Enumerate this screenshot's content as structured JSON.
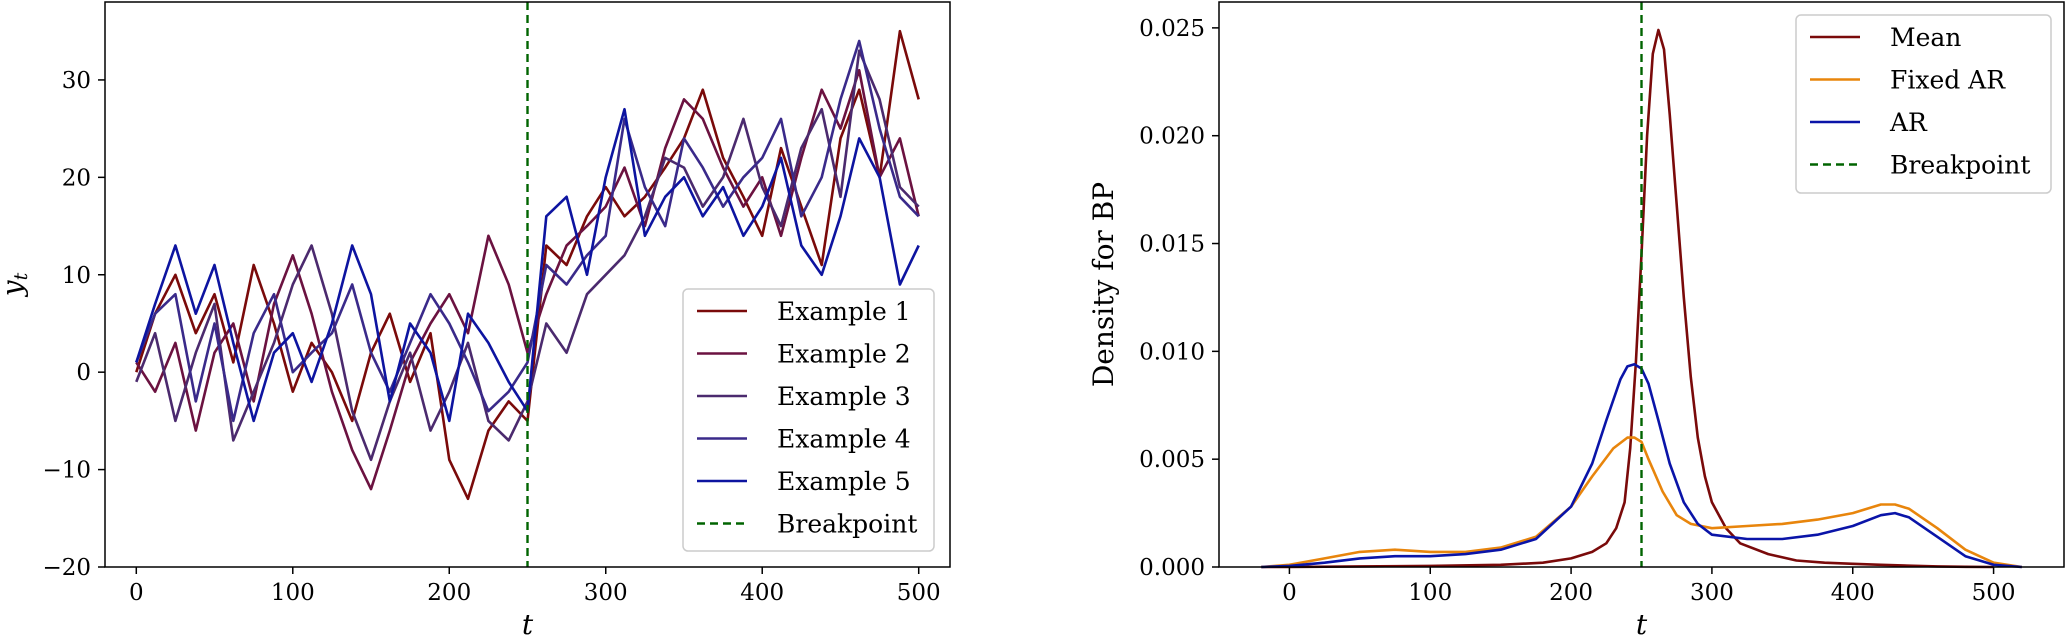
{
  "chart_data": [
    {
      "type": "line",
      "title": "",
      "xlabel": "t",
      "ylabel": "y",
      "ylabel_subscript": "t",
      "xlim": [
        -20,
        520
      ],
      "ylim": [
        -20,
        38
      ],
      "xticks": [
        0,
        100,
        200,
        300,
        400,
        500
      ],
      "yticks": [
        -20,
        -10,
        0,
        10,
        20,
        30
      ],
      "xtick_labels": [
        "0",
        "100",
        "200",
        "300",
        "400",
        "500"
      ],
      "ytick_labels": [
        "−20",
        "−10",
        "0",
        "10",
        "20",
        "30"
      ],
      "legend_position": "lower-right",
      "breakpoint": {
        "name": "Breakpoint",
        "x": 250,
        "color": "#006400",
        "style": "dashed"
      },
      "series": [
        {
          "name": "Example 1",
          "color": "#7a0a0a",
          "x": [
            0,
            12,
            25,
            38,
            50,
            62,
            75,
            88,
            100,
            112,
            125,
            138,
            150,
            162,
            175,
            188,
            200,
            212,
            225,
            238,
            250,
            262,
            275,
            288,
            300,
            312,
            325,
            338,
            350,
            362,
            375,
            388,
            400,
            412,
            425,
            438,
            450,
            462,
            475,
            488,
            500
          ],
          "y": [
            0,
            6,
            10,
            4,
            8,
            1,
            11,
            5,
            -2,
            3,
            0,
            -5,
            2,
            6,
            -1,
            4,
            -9,
            -13,
            -6,
            -3,
            -5,
            13,
            11,
            16,
            19,
            16,
            18,
            21,
            24,
            29,
            22,
            18,
            14,
            23,
            17,
            11,
            24,
            29,
            20,
            35,
            28
          ]
        },
        {
          "name": "Example 2",
          "color": "#6b1240",
          "x": [
            0,
            12,
            25,
            38,
            50,
            62,
            75,
            88,
            100,
            112,
            125,
            138,
            150,
            162,
            175,
            188,
            200,
            212,
            225,
            238,
            250,
            262,
            275,
            288,
            300,
            312,
            325,
            338,
            350,
            362,
            375,
            388,
            400,
            412,
            425,
            438,
            450,
            462,
            475,
            488,
            500
          ],
          "y": [
            1,
            -2,
            3,
            -6,
            2,
            5,
            -3,
            7,
            12,
            6,
            -2,
            -8,
            -12,
            -6,
            1,
            5,
            8,
            4,
            14,
            9,
            2,
            8,
            13,
            15,
            17,
            21,
            15,
            23,
            28,
            26,
            21,
            17,
            20,
            14,
            22,
            29,
            25,
            31,
            20,
            24,
            16
          ]
        },
        {
          "name": "Example 3",
          "color": "#4b2a6e",
          "x": [
            0,
            12,
            25,
            38,
            50,
            62,
            75,
            88,
            100,
            112,
            125,
            138,
            150,
            162,
            175,
            188,
            200,
            212,
            225,
            238,
            250,
            262,
            275,
            288,
            300,
            312,
            325,
            338,
            350,
            362,
            375,
            388,
            400,
            412,
            425,
            438,
            450,
            462,
            475,
            488,
            500
          ],
          "y": [
            -1,
            4,
            -5,
            2,
            7,
            -7,
            -2,
            3,
            9,
            13,
            6,
            -4,
            -9,
            -3,
            2,
            -6,
            -2,
            3,
            -5,
            -7,
            -3,
            5,
            2,
            8,
            10,
            12,
            16,
            22,
            21,
            17,
            20,
            26,
            19,
            15,
            23,
            27,
            18,
            33,
            28,
            19,
            17
          ]
        },
        {
          "name": "Example 4",
          "color": "#3a2a8a",
          "x": [
            0,
            12,
            25,
            38,
            50,
            62,
            75,
            88,
            100,
            112,
            125,
            138,
            150,
            162,
            175,
            188,
            200,
            212,
            225,
            238,
            250,
            262,
            275,
            288,
            300,
            312,
            325,
            338,
            350,
            362,
            375,
            388,
            400,
            412,
            425,
            438,
            450,
            462,
            475,
            488,
            500
          ],
          "y": [
            1,
            6,
            8,
            -3,
            5,
            -5,
            4,
            8,
            0,
            2,
            4,
            9,
            2,
            -2,
            3,
            8,
            5,
            1,
            -4,
            -2,
            1,
            11,
            9,
            12,
            14,
            26,
            19,
            15,
            24,
            21,
            17,
            20,
            22,
            26,
            16,
            20,
            28,
            34,
            25,
            18,
            16
          ]
        },
        {
          "name": "Example 5",
          "color": "#0d14a0",
          "x": [
            0,
            12,
            25,
            38,
            50,
            62,
            75,
            88,
            100,
            112,
            125,
            138,
            150,
            162,
            175,
            188,
            200,
            212,
            225,
            238,
            250,
            262,
            275,
            288,
            300,
            312,
            325,
            338,
            350,
            362,
            375,
            388,
            400,
            412,
            425,
            438,
            450,
            462,
            475,
            488,
            500
          ],
          "y": [
            1,
            7,
            13,
            6,
            11,
            3,
            -5,
            2,
            4,
            -1,
            5,
            13,
            8,
            -3,
            5,
            2,
            -5,
            6,
            3,
            -1,
            -4,
            16,
            18,
            10,
            20,
            27,
            14,
            18,
            20,
            16,
            19,
            14,
            17,
            22,
            13,
            10,
            16,
            24,
            20,
            9,
            13
          ]
        }
      ]
    },
    {
      "type": "line",
      "title": "",
      "xlabel": "t",
      "ylabel": "Density for BP",
      "xlim": [
        -50,
        550
      ],
      "ylim": [
        0,
        0.0262
      ],
      "xticks": [
        0,
        100,
        200,
        300,
        400,
        500
      ],
      "yticks": [
        0,
        0.005,
        0.01,
        0.015,
        0.02,
        0.025
      ],
      "xtick_labels": [
        "0",
        "100",
        "200",
        "300",
        "400",
        "500"
      ],
      "ytick_labels": [
        "0.000",
        "0.005",
        "0.010",
        "0.015",
        "0.020",
        "0.025"
      ],
      "legend_position": "top-right",
      "breakpoint": {
        "name": "Breakpoint",
        "x": 250,
        "color": "#006400",
        "style": "dashed"
      },
      "series": [
        {
          "name": "Mean",
          "color": "#7a0a0a",
          "x": [
            -20,
            0,
            50,
            100,
            150,
            180,
            200,
            215,
            225,
            232,
            238,
            242,
            246,
            250,
            254,
            258,
            262,
            266,
            270,
            275,
            280,
            285,
            290,
            295,
            300,
            310,
            320,
            340,
            360,
            380,
            400,
            420,
            440,
            460,
            480,
            500
          ],
          "y": [
            0,
            0,
            3e-05,
            5e-05,
            0.0001,
            0.0002,
            0.0004,
            0.0007,
            0.0011,
            0.0018,
            0.003,
            0.0055,
            0.0095,
            0.0145,
            0.02,
            0.0238,
            0.0249,
            0.024,
            0.021,
            0.0168,
            0.0125,
            0.0088,
            0.006,
            0.0042,
            0.003,
            0.0018,
            0.0011,
            0.0006,
            0.0003,
            0.0002,
            0.00015,
            0.0001,
            6e-05,
            3e-05,
            1e-05,
            0
          ]
        },
        {
          "name": "Fixed AR",
          "color": "#e8850c",
          "x": [
            -20,
            0,
            25,
            50,
            75,
            100,
            125,
            150,
            175,
            200,
            215,
            230,
            240,
            245,
            250,
            255,
            265,
            275,
            285,
            300,
            325,
            350,
            375,
            400,
            420,
            430,
            440,
            460,
            480,
            500,
            520
          ],
          "y": [
            0,
            0.0001,
            0.0004,
            0.0007,
            0.0008,
            0.0007,
            0.0007,
            0.0009,
            0.0014,
            0.0028,
            0.0042,
            0.0055,
            0.006,
            0.006,
            0.0058,
            0.005,
            0.0035,
            0.0024,
            0.002,
            0.0018,
            0.0019,
            0.002,
            0.0022,
            0.0025,
            0.0029,
            0.0029,
            0.0027,
            0.0018,
            0.0008,
            0.0002,
            0
          ]
        },
        {
          "name": "AR",
          "color": "#0a14a8",
          "x": [
            -20,
            0,
            25,
            50,
            75,
            100,
            125,
            150,
            175,
            200,
            215,
            225,
            235,
            240,
            245,
            250,
            255,
            262,
            270,
            280,
            290,
            300,
            325,
            350,
            375,
            400,
            420,
            430,
            440,
            460,
            480,
            500,
            520
          ],
          "y": [
            0,
            5e-05,
            0.0002,
            0.0004,
            0.0005,
            0.0005,
            0.0006,
            0.0008,
            0.0013,
            0.0028,
            0.0048,
            0.0068,
            0.0087,
            0.0093,
            0.0094,
            0.0092,
            0.0085,
            0.0068,
            0.0048,
            0.003,
            0.002,
            0.0015,
            0.0013,
            0.0013,
            0.0015,
            0.0019,
            0.0024,
            0.0025,
            0.0023,
            0.0014,
            0.0005,
            0.0001,
            0
          ]
        }
      ]
    }
  ]
}
